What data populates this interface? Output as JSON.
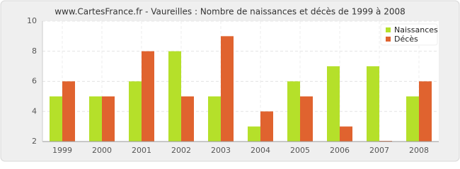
{
  "chart_data": {
    "type": "bar",
    "title": "www.CartesFrance.fr - Vaureilles : Nombre de naissances et décès de 1999 à 2008",
    "categories": [
      "1999",
      "2000",
      "2001",
      "2002",
      "2003",
      "2004",
      "2005",
      "2006",
      "2007",
      "2008"
    ],
    "series": [
      {
        "name": "Naissances",
        "color": "#b5e02a",
        "values": [
          5,
          5,
          6,
          8,
          5,
          3,
          6,
          7,
          7,
          5
        ]
      },
      {
        "name": "Décès",
        "color": "#e0632f",
        "values": [
          6,
          5,
          8,
          5,
          9,
          4,
          5,
          3,
          2,
          6
        ]
      }
    ],
    "ylim": [
      2,
      10
    ],
    "yticks": [
      2,
      4,
      6,
      8,
      10
    ],
    "grid": true,
    "legend": "top-right"
  }
}
